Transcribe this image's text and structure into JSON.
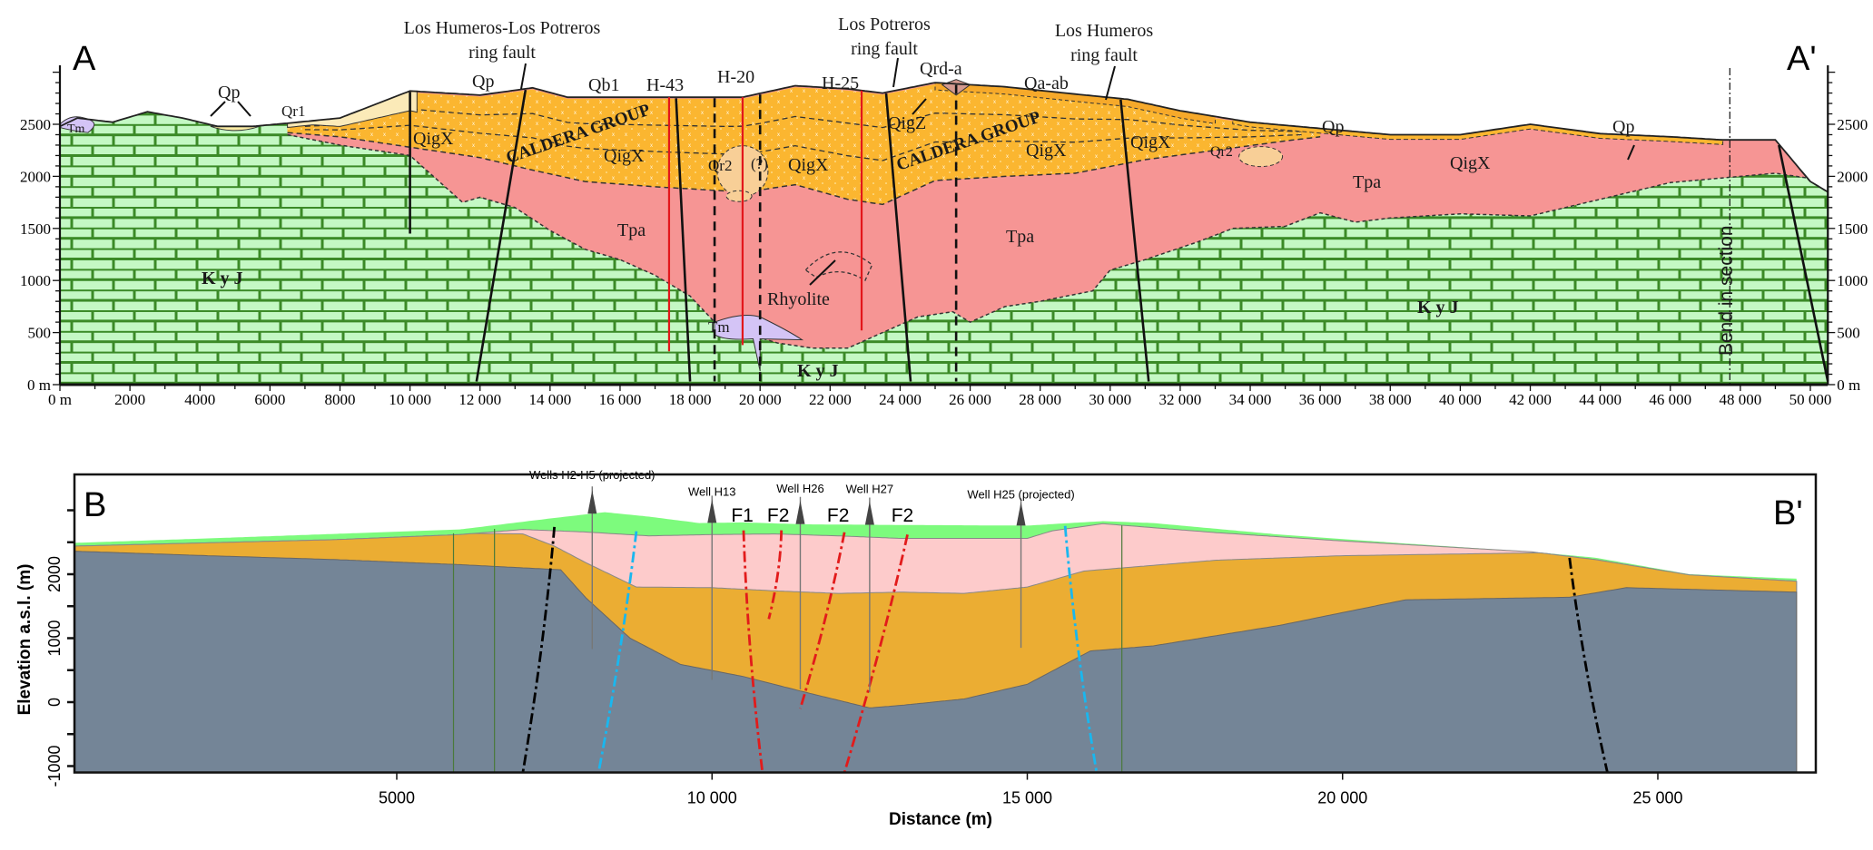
{
  "chart_data": [
    {
      "type": "area",
      "panel_label_left": "A",
      "panel_label_right": "A'",
      "title": "",
      "xlabel": "",
      "ylabel": "",
      "xlim": [
        0,
        50500
      ],
      "ylim": [
        0,
        3000
      ],
      "x_ticks": [
        0,
        2000,
        4000,
        6000,
        8000,
        10000,
        12000,
        14000,
        16000,
        18000,
        20000,
        22000,
        24000,
        26000,
        28000,
        30000,
        32000,
        34000,
        36000,
        38000,
        40000,
        42000,
        44000,
        46000,
        48000,
        50000
      ],
      "x_tick_labels": [
        "0 m",
        "2000",
        "4000",
        "6000",
        "8000",
        "10 000",
        "12 000",
        "14 000",
        "16 000",
        "18 000",
        "20 000",
        "22 000",
        "24 000",
        "26 000",
        "28 000",
        "30 000",
        "32 000",
        "34 000",
        "36 000",
        "38 000",
        "40 000",
        "42 000",
        "44 000",
        "46 000",
        "48 000",
        "50 000"
      ],
      "y_ticks": [
        0,
        500,
        1000,
        1500,
        2000,
        2500
      ],
      "y_tick_labels": [
        "0 m",
        "500",
        "1000",
        "1500",
        "2000",
        "2500"
      ],
      "units": [
        {
          "name": "KyJ",
          "label": "K y J",
          "color": "#c4f8c4",
          "pattern": "limestone-brick"
        },
        {
          "name": "Tpa",
          "label": "Tpa",
          "color": "#f69594"
        },
        {
          "name": "Caldera group QigX",
          "label": "QigX",
          "color": "#fbb630"
        },
        {
          "name": "Tm",
          "label": "Tm",
          "color": "#d4c4f6"
        },
        {
          "name": "Qr2",
          "label": "Qr2",
          "color": "#f8cf97"
        },
        {
          "name": "Qp",
          "label": "Qp",
          "color": "#fbeca4"
        },
        {
          "name": "Qr1",
          "label": "Qr1",
          "color": "#fbeab8"
        }
      ],
      "surfaces": {
        "topography": {
          "x": [
            0,
            500,
            1500,
            2500,
            3500,
            4500,
            5500,
            6500,
            8000,
            10000,
            12000,
            13500,
            14500,
            16000,
            18000,
            19500,
            21000,
            22500,
            23500,
            25000,
            27000,
            29000,
            30500,
            32000,
            34000,
            36000,
            38000,
            40000,
            42000,
            44000,
            46000,
            47500,
            49000,
            50000,
            50500
          ],
          "y": [
            2480,
            2560,
            2520,
            2620,
            2560,
            2480,
            2480,
            2510,
            2560,
            2820,
            2780,
            2850,
            2760,
            2760,
            2760,
            2760,
            2870,
            2840,
            2800,
            2900,
            2860,
            2790,
            2740,
            2630,
            2520,
            2460,
            2400,
            2400,
            2500,
            2410,
            2380,
            2350,
            2350,
            1950,
            1850
          ]
        },
        "caldera_base": {
          "x": [
            6500,
            8000,
            10000,
            12000,
            13500,
            15000,
            17000,
            18000,
            19000,
            20000,
            21000,
            22500,
            23500,
            25000,
            27000,
            29000,
            31000,
            33000,
            35000,
            36000
          ],
          "y": [
            2420,
            2380,
            2280,
            2180,
            2060,
            1950,
            1900,
            1880,
            1860,
            1870,
            1920,
            1780,
            1730,
            1960,
            2000,
            2030,
            2160,
            2250,
            2340,
            2380
          ]
        },
        "tpa_base": {
          "x": [
            6500,
            8000,
            10000,
            11500,
            12000,
            13000,
            14000,
            15000,
            16000,
            17000,
            18000,
            18700,
            19500,
            20500,
            21500,
            22500,
            23500,
            24500,
            25500,
            26000,
            27000,
            28000,
            29500,
            30000,
            31000,
            32500,
            33500,
            35000,
            36000,
            37000,
            38000,
            40000,
            42000,
            44000,
            46000,
            48000,
            49000,
            50000
          ],
          "y": [
            2400,
            2300,
            2200,
            1750,
            1800,
            1700,
            1480,
            1300,
            1200,
            1050,
            850,
            600,
            500,
            400,
            350,
            350,
            500,
            650,
            700,
            600,
            750,
            800,
            900,
            1100,
            1200,
            1370,
            1500,
            1520,
            1650,
            1560,
            1600,
            1640,
            1620,
            1780,
            1940,
            2000,
            2030,
            1980
          ]
        }
      },
      "faults": [
        {
          "label": "Los Humeros-Los Potreros ring fault",
          "x_top": 13300,
          "x_bottom": 11900,
          "style": "solid"
        },
        {
          "label": "",
          "x_top": 10000,
          "x_bottom": 10000,
          "y_bottom": 1450,
          "style": "solid"
        },
        {
          "label": "",
          "x_top": 17600,
          "x_bottom": 18000,
          "style": "solid"
        },
        {
          "label": "",
          "x_top": 18700,
          "x_bottom": 18700,
          "style": "dashed"
        },
        {
          "label": "",
          "x_top": 20000,
          "x_bottom": 20000,
          "style": "dashed"
        },
        {
          "label": "Los Potreros ring fault",
          "x_top": 23600,
          "x_bottom": 24300,
          "style": "solid"
        },
        {
          "label": "",
          "x_top": 25600,
          "x_bottom": 25600,
          "style": "dashed"
        },
        {
          "label": "Los Humeros ring fault",
          "x_top": 30300,
          "x_bottom": 31100,
          "style": "solid"
        },
        {
          "label": "",
          "x_top": 49100,
          "x_bottom": 50500,
          "style": "solid"
        }
      ],
      "wells": [
        {
          "label": "H-43",
          "x": 17400,
          "y_bottom": 320
        },
        {
          "label": "H-20",
          "x": 19500,
          "y_bottom": 380
        },
        {
          "label": "H-25",
          "x": 22900,
          "y_bottom": 520
        }
      ],
      "annotations": [
        {
          "text": "Los Humeros-Los Potreros",
          "text2": "ring fault"
        },
        {
          "text": "Los Potreros",
          "text2": "ring fault"
        },
        {
          "text": "Los Humeros",
          "text2": "ring fault"
        },
        {
          "text": "Qp"
        },
        {
          "text": "Qp"
        },
        {
          "text": "Qb1"
        },
        {
          "text": "H-43"
        },
        {
          "text": "H-20"
        },
        {
          "text": "H-25"
        },
        {
          "text": "Qrd-a"
        },
        {
          "text": "Qa-ab"
        },
        {
          "text": "Qp"
        },
        {
          "text": "Qp"
        },
        {
          "text": "Tm"
        },
        {
          "text": "Qr1"
        },
        {
          "text": "QigX"
        },
        {
          "text": "CALDERA GROUP"
        },
        {
          "text": "QigX"
        },
        {
          "text": "Qr2"
        },
        {
          "text": "(?)"
        },
        {
          "text": "QigX"
        },
        {
          "text": "QigZ"
        },
        {
          "text": "CALDERA GROUP"
        },
        {
          "text": "QigX"
        },
        {
          "text": "QigX"
        },
        {
          "text": "Qr2"
        },
        {
          "text": "Tpa"
        },
        {
          "text": "Tpa"
        },
        {
          "text": "Tpa"
        },
        {
          "text": "QigX"
        },
        {
          "text": "Rhyolite"
        },
        {
          "text": "Tm"
        },
        {
          "text": "K y J"
        },
        {
          "text": "K y J"
        },
        {
          "text": "K y J"
        },
        {
          "text": "Bend in section"
        },
        {
          "text": "?"
        }
      ],
      "bend_in_section_x": 47700,
      "grid": false
    },
    {
      "type": "area",
      "panel_label_left": "B",
      "panel_label_right": "B'",
      "title": "",
      "xlabel": "Distance (m)",
      "ylabel": "Elevation a.s.l. (m)",
      "xlim": [
        -100,
        27200
      ],
      "ylim": [
        -1100,
        3500
      ],
      "x_ticks": [
        5000,
        10000,
        15000,
        20000,
        25000
      ],
      "x_tick_labels": [
        "5000",
        "10 000",
        "15 000",
        "20 000",
        "25 000"
      ],
      "y_ticks": [
        -1000,
        0,
        1000,
        2000
      ],
      "y_tick_labels": [
        "-1000",
        "0",
        "1000",
        "2000"
      ],
      "y_minor_ticks": [
        -500,
        500,
        1500,
        2500,
        3000
      ],
      "units": [
        {
          "name": "basement",
          "color": "#748597"
        },
        {
          "name": "orange unit",
          "color": "#ebad33"
        },
        {
          "name": "pink unit",
          "color": "#fdcbcb"
        },
        {
          "name": "green surface unit",
          "color": "#7dfb7d"
        }
      ],
      "surfaces": {
        "topography": {
          "x": [
            -100,
            2000,
            4000,
            6000,
            7500,
            8300,
            9000,
            9800,
            10500,
            11500,
            13000,
            15000,
            15500,
            16200,
            17000,
            19000,
            21000,
            23000,
            24000,
            25500,
            27200
          ],
          "y": [
            2490,
            2560,
            2630,
            2700,
            2880,
            2970,
            2900,
            2800,
            2810,
            2780,
            2770,
            2760,
            2790,
            2830,
            2800,
            2620,
            2480,
            2350,
            2260,
            2000,
            1930
          ]
        },
        "green_base": {
          "x": [
            -100,
            4000,
            6000,
            7000,
            8000,
            9000,
            10000,
            11000,
            12000,
            13000,
            15000,
            15400,
            16200,
            18000,
            20000,
            23000,
            24000,
            25500,
            27200
          ],
          "y": [
            2440,
            2540,
            2620,
            2700,
            2660,
            2600,
            2620,
            2630,
            2600,
            2560,
            2560,
            2680,
            2790,
            2650,
            2520,
            2350,
            2230,
            1990,
            1890
          ]
        },
        "pink_base": {
          "x": [
            6000,
            7000,
            7500,
            8000,
            8800,
            10000,
            11000,
            12000,
            13000,
            14000,
            15000,
            15900,
            18000,
            20000,
            23500
          ],
          "y": [
            2640,
            2630,
            2440,
            2180,
            1800,
            1790,
            1740,
            1700,
            1720,
            1700,
            1800,
            2050,
            2220,
            2290,
            2340
          ]
        },
        "orange_base": {
          "x": [
            -100,
            2000,
            4000,
            6000,
            7600,
            8000,
            8700,
            9500,
            10500,
            11500,
            12500,
            13000,
            14000,
            15000,
            16000,
            17000,
            19000,
            21000,
            23600,
            24500,
            27200
          ],
          "y": [
            2360,
            2290,
            2230,
            2150,
            2070,
            1630,
            1000,
            590,
            400,
            150,
            -90,
            -50,
            50,
            280,
            800,
            880,
            1200,
            1600,
            1640,
            1790,
            1720
          ]
        }
      },
      "faults": [
        {
          "label": "",
          "color": "#000000",
          "style": "dash-dot",
          "x_top": 7500,
          "x_bottom": 7000
        },
        {
          "label": "",
          "color": "#19b7ef",
          "style": "dash-dot",
          "x_top": 8800,
          "x_bottom": 8200
        },
        {
          "label": "F1",
          "color": "#e21b1b",
          "style": "dash-dot",
          "x_top": 10500,
          "x_bottom": 10800
        },
        {
          "label": "F2",
          "color": "#e21b1b",
          "style": "dash-dot",
          "x_top": 11100,
          "x_bottom": 10900,
          "y_bottom": 1300
        },
        {
          "label": "F2",
          "color": "#e21b1b",
          "style": "dash-dot",
          "x_top": 12100,
          "x_bottom": 11400,
          "y_bottom": -100
        },
        {
          "label": "F2",
          "color": "#e21b1b",
          "style": "dash-dot",
          "x_top": 13100,
          "x_bottom": 12100
        },
        {
          "label": "",
          "color": "#19b7ef",
          "style": "dash-dot",
          "x_top": 15600,
          "x_bottom": 16100
        },
        {
          "label": "",
          "color": "#000000",
          "style": "dash-dot",
          "x_top": 23600,
          "x_bottom": 24200
        }
      ],
      "wells": [
        {
          "label": "Wells H2-H5 (projected)",
          "x": 8100,
          "y_bottom": 830
        },
        {
          "label": "Well H13",
          "x": 10000,
          "y_bottom": 350
        },
        {
          "label": "Well H26",
          "x": 11400,
          "y_bottom": 200
        },
        {
          "label": "Well H27",
          "x": 12500,
          "y_bottom": 150
        },
        {
          "label": "Well H25 (projected)",
          "x": 14900,
          "y_bottom": 850
        }
      ],
      "fault_labels": [
        "F1",
        "F2",
        "F2",
        "F2"
      ],
      "thin_wells": [
        5900,
        6550,
        16500
      ],
      "grid": false
    }
  ]
}
